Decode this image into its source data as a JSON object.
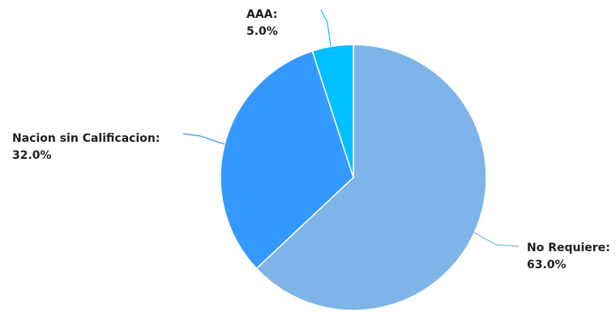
{
  "chart_data": {
    "type": "pie",
    "categories": [
      "No Requiere",
      "Nacion sin Calificacion",
      "AAA"
    ],
    "values": [
      63.0,
      32.0,
      5.0
    ],
    "value_labels": [
      "63.0%",
      "32.0%",
      "5.0%"
    ],
    "colors": [
      "#7fb4e8",
      "#3399ff",
      "#00bfff"
    ],
    "start_angle": "12 o'clock",
    "direction": "clockwise",
    "data_labels": "outside with connector lines",
    "legend": "none",
    "title": ""
  }
}
